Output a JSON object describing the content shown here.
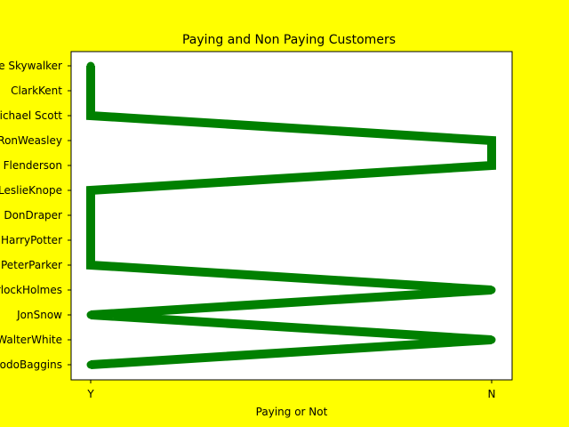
{
  "chart_data": {
    "type": "line",
    "title": "Paying and Non Paying Customers",
    "xlabel": "Paying or Not",
    "ylabel": "",
    "x_categories": [
      "Y",
      "N"
    ],
    "y_categories": [
      "FrodoBaggins",
      "WalterWhite",
      "JonSnow",
      "SherlockHolmes",
      "PeterParker",
      "HarryPotter",
      "DonDraper",
      "LeslieKnope",
      "Toby Flenderson",
      "RonWeasley",
      "Michael Scott",
      "ClarkKent",
      "Luke Skywalker"
    ],
    "points": [
      {
        "customer": "FrodoBaggins",
        "paying": "Y"
      },
      {
        "customer": "WalterWhite",
        "paying": "N"
      },
      {
        "customer": "JonSnow",
        "paying": "Y"
      },
      {
        "customer": "SherlockHolmes",
        "paying": "N"
      },
      {
        "customer": "PeterParker",
        "paying": "Y"
      },
      {
        "customer": "HarryPotter",
        "paying": "Y"
      },
      {
        "customer": "DonDraper",
        "paying": "Y"
      },
      {
        "customer": "LeslieKnope",
        "paying": "Y"
      },
      {
        "customer": "Toby Flenderson",
        "paying": "N"
      },
      {
        "customer": "RonWeasley",
        "paying": "N"
      },
      {
        "customer": "Michael Scott",
        "paying": "Y"
      },
      {
        "customer": "ClarkKent",
        "paying": "Y"
      },
      {
        "customer": "Luke Skywalker",
        "paying": "Y"
      }
    ],
    "line_color": "#008000",
    "marker": "circle",
    "background_color": "#ffff00",
    "plot_background": "#ffffff",
    "grid": false,
    "legend": "none"
  }
}
